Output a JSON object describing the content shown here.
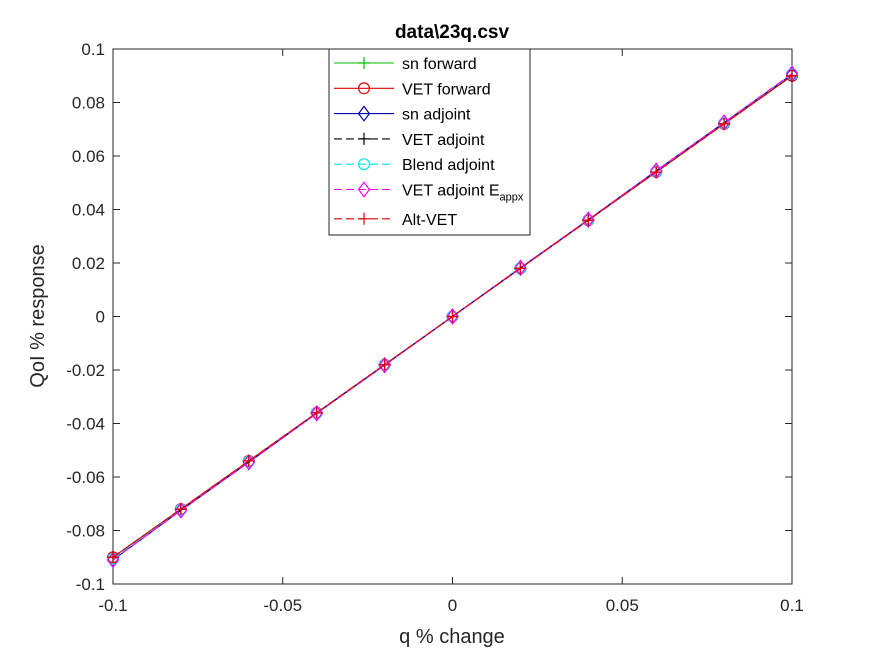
{
  "chart_data": {
    "type": "line",
    "title": "data\\23q.csv",
    "xlabel": "q % change",
    "ylabel": "QoI % response",
    "xlim": [
      -0.1,
      0.1
    ],
    "ylim": [
      -0.1,
      0.1
    ],
    "grid": false,
    "legend_placement": "top-center",
    "x_ticks": [
      "-0.1",
      "-0.05",
      "0",
      "0.05",
      "0.1"
    ],
    "y_ticks": [
      "-0.1",
      "-0.08",
      "-0.06",
      "-0.04",
      "-0.02",
      "0",
      "0.02",
      "0.04",
      "0.06",
      "0.08",
      "0.1"
    ],
    "x": [
      -0.1,
      -0.08,
      -0.06,
      -0.04,
      -0.02,
      0,
      0.02,
      0.04,
      0.06,
      0.08,
      0.1
    ],
    "series": [
      {
        "name": "sn forward",
        "color": "#00c000",
        "marker": "plus",
        "dash": "solid",
        "values": [
          -0.09,
          -0.072,
          -0.054,
          -0.036,
          -0.018,
          0,
          0.018,
          0.036,
          0.054,
          0.072,
          0.09
        ]
      },
      {
        "name": "VET forward",
        "color": "#e00000",
        "marker": "circle",
        "dash": "solid",
        "values": [
          -0.09,
          -0.072,
          -0.054,
          -0.036,
          -0.018,
          0,
          0.018,
          0.036,
          0.054,
          0.072,
          0.09
        ]
      },
      {
        "name": "sn adjoint",
        "color": "#0000b0",
        "marker": "diamond",
        "dash": "solid",
        "values": [
          -0.091,
          -0.0725,
          -0.0545,
          -0.0362,
          -0.0182,
          0,
          0.0182,
          0.0362,
          0.0545,
          0.0725,
          0.0905
        ]
      },
      {
        "name": "VET adjoint",
        "color": "#000000",
        "marker": "plus",
        "dash": "dashed",
        "values": [
          -0.09,
          -0.072,
          -0.054,
          -0.036,
          -0.018,
          0,
          0.018,
          0.036,
          0.054,
          0.072,
          0.09
        ]
      },
      {
        "name": "Blend adjoint",
        "color": "#00e5ee",
        "marker": "circle",
        "dash": "dashed",
        "values": [
          -0.0905,
          -0.0722,
          -0.0542,
          -0.0361,
          -0.0181,
          0,
          0.0181,
          0.0361,
          0.0542,
          0.0722,
          0.0905
        ]
      },
      {
        "name": "VET adjoint E",
        "name_sub": "appx",
        "color": "#ff00ff",
        "marker": "diamond",
        "dash": "dashed",
        "values": [
          -0.091,
          -0.0725,
          -0.0545,
          -0.0362,
          -0.0182,
          0,
          0.0182,
          0.0362,
          0.0545,
          0.0725,
          0.0908
        ]
      },
      {
        "name": "Alt-VET",
        "color": "#e00000",
        "marker": "plus",
        "dash": "dashed",
        "values": [
          -0.09,
          -0.072,
          -0.054,
          -0.036,
          -0.018,
          0,
          0.018,
          0.036,
          0.054,
          0.072,
          0.09
        ]
      }
    ]
  }
}
